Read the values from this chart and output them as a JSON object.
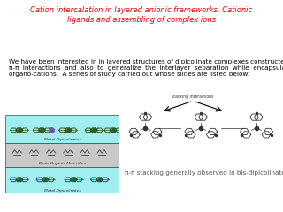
{
  "title_line1": "Cation intercalation in layered anionic frameworks, Cationic",
  "title_line2": "ligands and assembling of complex ions",
  "title_color": "#e8000a",
  "title_fontsize": 6.0,
  "body_text": "We have been interested in in layered structures of dipicolinate complexes constructed by\nπ-π  interactions  and  also  to  generalize  the  interlayer  separation  while  encapsulating\norgano-cations.  A series of study carried out whose slides are listed below:",
  "body_fontsize": 5.2,
  "caption_text": "π-π stacking generally observed in bis-dipicolinates",
  "caption_fontsize": 5.2,
  "caption_color": "#555555",
  "bg_color": "#ffffff",
  "cyan_color": "#a0eef0",
  "gray_color": "#c8c8c8"
}
